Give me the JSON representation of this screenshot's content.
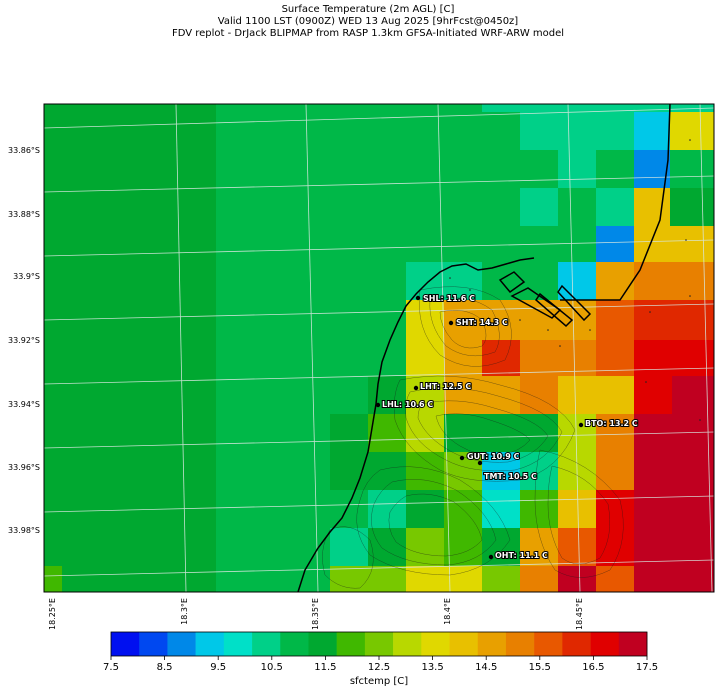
{
  "title": {
    "line1": "Surface Temperature (2m AGL) [C]",
    "line2": "Valid 1100 LST (0900Z) WED 13 Aug 2025 [9hrFcst@0450z]",
    "line3": "FDV replot - DrJack BLIPMAP from RASP 1.3km GFSA-Initiated WRF-ARW model"
  },
  "axes": {
    "lat_labels": [
      "33.86°S",
      "33.88°S",
      "33.9°S",
      "33.92°S",
      "33.94°S",
      "33.96°S",
      "33.98°S"
    ],
    "lon_labels": [
      "18.25°E",
      "18.3°E",
      "18.35°E",
      "18.4°E",
      "18.45°E"
    ]
  },
  "stations": [
    {
      "label": "SHL: 11.6 C",
      "value": 11.6
    },
    {
      "label": "SHT: 14.3 C",
      "value": 14.3
    },
    {
      "label": "LHT: 12.5 C",
      "value": 12.5
    },
    {
      "label": "LHL: 10.6 C",
      "value": 10.6
    },
    {
      "label": "BTO: 13.2 C",
      "value": 13.2
    },
    {
      "label": "GUT: 10.9 C",
      "value": 10.9
    },
    {
      "label": "TMT: 10.5 C",
      "value": 10.5
    },
    {
      "label": "OHT: 11.1 C",
      "value": 11.1
    }
  ],
  "colorbar": {
    "title": "sfctemp [C]",
    "min": 7.5,
    "max": 17.5,
    "tick_labels": [
      "7.5",
      "8.5",
      "9.5",
      "10.5",
      "11.5",
      "12.5",
      "13.5",
      "14.5",
      "15.5",
      "16.5",
      "17.5"
    ],
    "colors": [
      "#0010f0",
      "#0048f0",
      "#0088e8",
      "#00c8e8",
      "#00e0c8",
      "#00d088",
      "#00b848",
      "#00a830",
      "#40b800",
      "#78c800",
      "#b8d800",
      "#e0d800",
      "#e8c000",
      "#e8a000",
      "#e88000",
      "#e85800",
      "#e02800",
      "#e00000",
      "#c00020"
    ]
  }
}
